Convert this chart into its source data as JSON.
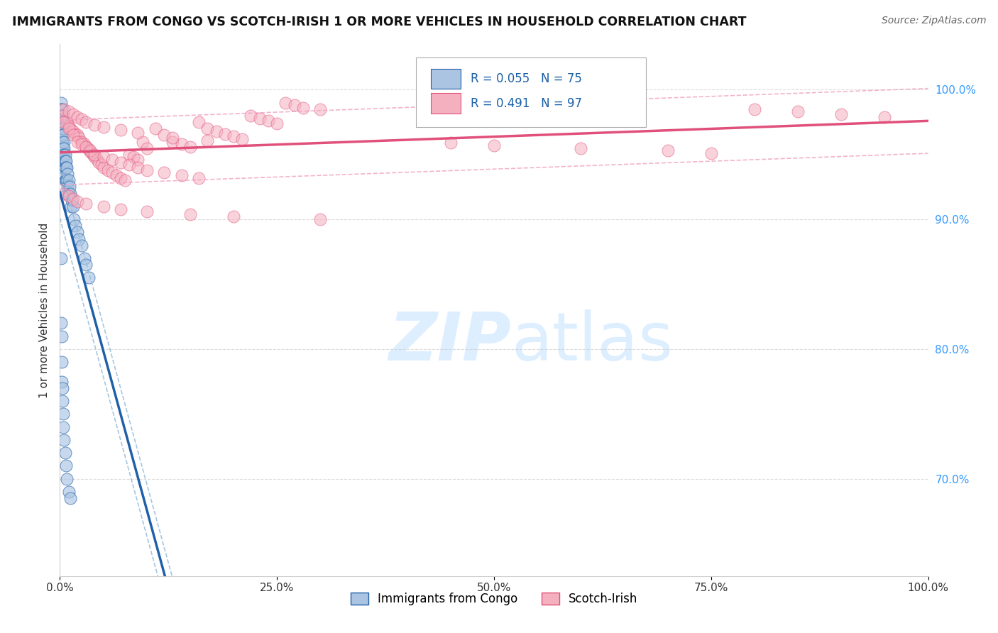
{
  "title": "IMMIGRANTS FROM CONGO VS SCOTCH-IRISH 1 OR MORE VEHICLES IN HOUSEHOLD CORRELATION CHART",
  "source": "Source: ZipAtlas.com",
  "ylabel": "1 or more Vehicles in Household",
  "y_ticks": [
    0.7,
    0.8,
    0.9,
    1.0
  ],
  "y_tick_labels": [
    "70.0%",
    "80.0%",
    "90.0%",
    "100.0%"
  ],
  "x_range": [
    0.0,
    1.0
  ],
  "y_range": [
    0.625,
    1.035
  ],
  "legend_congo": "Immigrants from Congo",
  "legend_scotch": "Scotch-Irish",
  "R_congo": 0.055,
  "N_congo": 75,
  "R_scotch": 0.491,
  "N_scotch": 97,
  "color_congo": "#aac4e2",
  "color_scotch": "#f5b0c0",
  "line_color_congo": "#2060a8",
  "line_color_scotch": "#e0507a",
  "dash_color_congo": "#90b8d8",
  "dash_color_scotch": "#f0a0c0",
  "watermark_color": "#ddeeff",
  "background_color": "#ffffff",
  "congo_x": [
    0.001,
    0.001,
    0.001,
    0.001,
    0.001,
    0.001,
    0.001,
    0.001,
    0.002,
    0.002,
    0.002,
    0.002,
    0.002,
    0.002,
    0.002,
    0.002,
    0.003,
    0.003,
    0.003,
    0.003,
    0.003,
    0.003,
    0.003,
    0.004,
    0.004,
    0.004,
    0.004,
    0.004,
    0.005,
    0.005,
    0.005,
    0.005,
    0.005,
    0.006,
    0.006,
    0.006,
    0.006,
    0.007,
    0.007,
    0.007,
    0.008,
    0.008,
    0.008,
    0.009,
    0.009,
    0.01,
    0.01,
    0.011,
    0.012,
    0.013,
    0.014,
    0.015,
    0.016,
    0.018,
    0.02,
    0.022,
    0.025,
    0.028,
    0.03,
    0.033,
    0.001,
    0.001,
    0.002,
    0.002,
    0.002,
    0.003,
    0.003,
    0.004,
    0.004,
    0.005,
    0.006,
    0.007,
    0.008,
    0.01,
    0.012
  ],
  "congo_y": [
    0.99,
    0.985,
    0.98,
    0.975,
    0.97,
    0.965,
    0.96,
    0.955,
    0.985,
    0.98,
    0.975,
    0.97,
    0.965,
    0.96,
    0.955,
    0.95,
    0.98,
    0.975,
    0.965,
    0.96,
    0.955,
    0.95,
    0.94,
    0.97,
    0.965,
    0.955,
    0.95,
    0.94,
    0.96,
    0.955,
    0.95,
    0.945,
    0.935,
    0.95,
    0.945,
    0.94,
    0.93,
    0.945,
    0.94,
    0.93,
    0.94,
    0.93,
    0.92,
    0.935,
    0.925,
    0.93,
    0.92,
    0.925,
    0.92,
    0.91,
    0.915,
    0.91,
    0.9,
    0.895,
    0.89,
    0.885,
    0.88,
    0.87,
    0.865,
    0.855,
    0.87,
    0.82,
    0.81,
    0.79,
    0.775,
    0.77,
    0.76,
    0.75,
    0.74,
    0.73,
    0.72,
    0.71,
    0.7,
    0.69,
    0.685
  ],
  "scotch_x": [
    0.005,
    0.008,
    0.01,
    0.012,
    0.015,
    0.018,
    0.02,
    0.022,
    0.025,
    0.028,
    0.03,
    0.033,
    0.035,
    0.038,
    0.04,
    0.043,
    0.045,
    0.048,
    0.05,
    0.055,
    0.06,
    0.065,
    0.07,
    0.075,
    0.08,
    0.085,
    0.09,
    0.095,
    0.1,
    0.11,
    0.12,
    0.13,
    0.14,
    0.15,
    0.16,
    0.17,
    0.18,
    0.19,
    0.2,
    0.21,
    0.22,
    0.23,
    0.24,
    0.25,
    0.26,
    0.27,
    0.28,
    0.3,
    0.005,
    0.01,
    0.015,
    0.02,
    0.025,
    0.03,
    0.035,
    0.04,
    0.05,
    0.06,
    0.07,
    0.08,
    0.09,
    0.1,
    0.12,
    0.14,
    0.16,
    0.005,
    0.01,
    0.015,
    0.02,
    0.025,
    0.03,
    0.04,
    0.05,
    0.07,
    0.09,
    0.13,
    0.17,
    0.45,
    0.5,
    0.6,
    0.7,
    0.75,
    0.8,
    0.85,
    0.9,
    0.95,
    0.005,
    0.01,
    0.015,
    0.02,
    0.03,
    0.05,
    0.07,
    0.1,
    0.15,
    0.2,
    0.3
  ],
  "scotch_y": [
    0.98,
    0.975,
    0.972,
    0.97,
    0.968,
    0.966,
    0.965,
    0.963,
    0.96,
    0.958,
    0.956,
    0.954,
    0.952,
    0.95,
    0.948,
    0.946,
    0.944,
    0.942,
    0.94,
    0.938,
    0.936,
    0.934,
    0.932,
    0.93,
    0.95,
    0.948,
    0.946,
    0.96,
    0.955,
    0.97,
    0.965,
    0.96,
    0.958,
    0.956,
    0.975,
    0.97,
    0.968,
    0.966,
    0.964,
    0.962,
    0.98,
    0.978,
    0.976,
    0.974,
    0.99,
    0.988,
    0.986,
    0.985,
    0.975,
    0.97,
    0.965,
    0.96,
    0.958,
    0.956,
    0.953,
    0.95,
    0.948,
    0.946,
    0.944,
    0.942,
    0.94,
    0.938,
    0.936,
    0.934,
    0.932,
    0.985,
    0.983,
    0.981,
    0.979,
    0.977,
    0.975,
    0.973,
    0.971,
    0.969,
    0.967,
    0.963,
    0.961,
    0.959,
    0.957,
    0.955,
    0.953,
    0.951,
    0.985,
    0.983,
    0.981,
    0.979,
    0.92,
    0.918,
    0.916,
    0.914,
    0.912,
    0.91,
    0.908,
    0.906,
    0.904,
    0.902,
    0.9
  ]
}
